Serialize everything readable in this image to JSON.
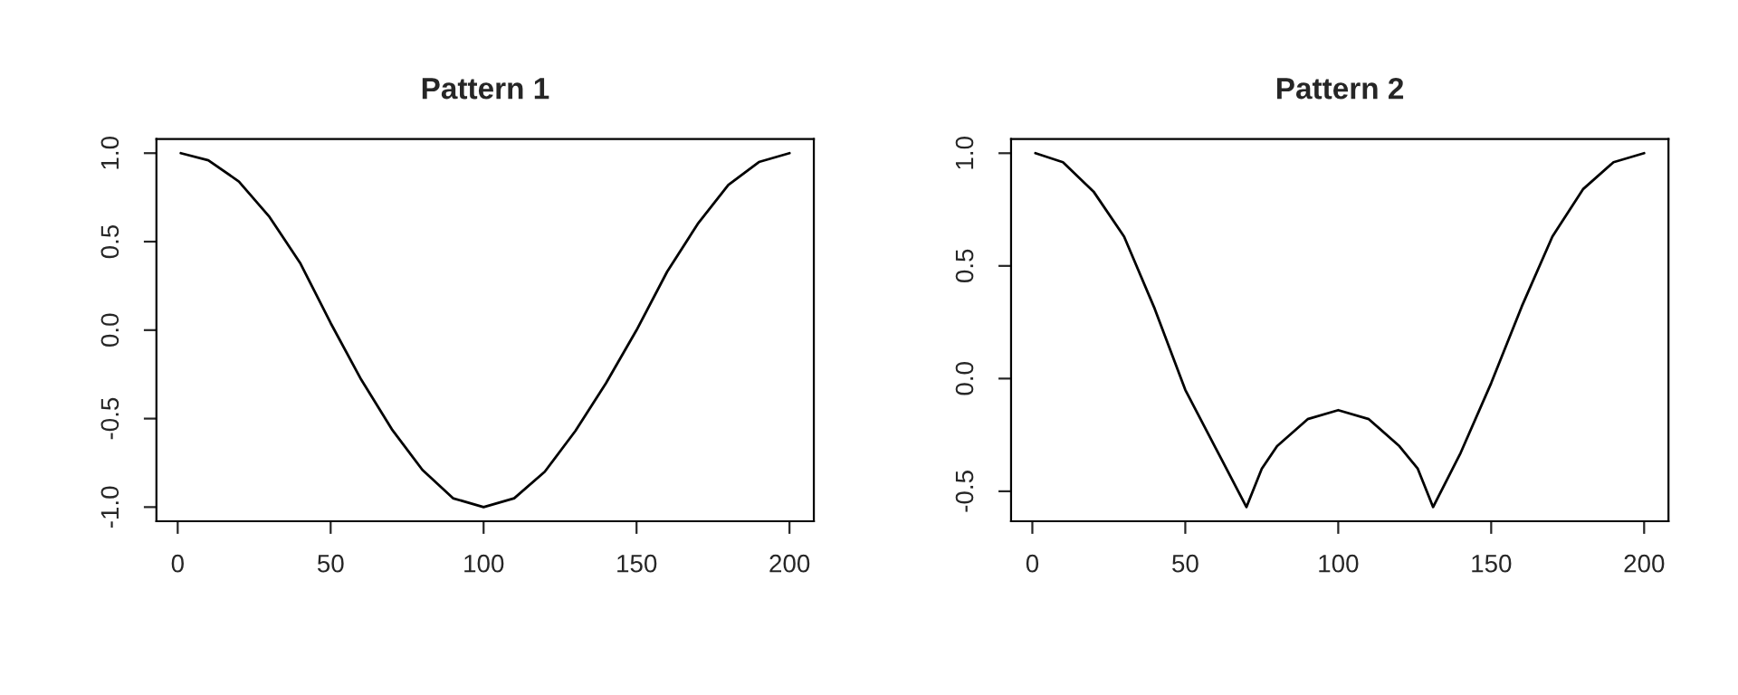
{
  "chart_data": [
    {
      "type": "line",
      "title": "Pattern 1",
      "x": [
        1,
        10,
        20,
        30,
        40,
        50,
        60,
        70,
        80,
        90,
        100,
        110,
        120,
        130,
        140,
        150,
        160,
        170,
        180,
        190,
        200
      ],
      "series": [
        {
          "color": "#000000",
          "values": [
            1,
            0.96,
            0.84,
            0.64,
            0.38,
            0.04,
            -0.28,
            -0.56,
            -0.79,
            -0.95,
            -1,
            -0.95,
            -0.8,
            -0.57,
            -0.3,
            0.0,
            0.33,
            0.6,
            0.82,
            0.95,
            1
          ]
        }
      ],
      "xlim": [
        -6.96,
        207.96
      ],
      "ylim": [
        -1.08,
        1.08
      ],
      "xticks": [
        0,
        50,
        100,
        150,
        200
      ],
      "yticks": [
        {
          "value": -1,
          "label": "-1.0"
        },
        {
          "value": -0.5,
          "label": "-0.5"
        },
        {
          "value": 0,
          "label": "0.0"
        },
        {
          "value": 0.5,
          "label": "0.5"
        },
        {
          "value": 1,
          "label": "1.0"
        }
      ],
      "grid": false,
      "legend": false
    },
    {
      "type": "line",
      "title": "Pattern 2",
      "x": [
        1,
        10,
        20,
        30,
        40,
        50,
        60,
        70,
        75,
        80,
        90,
        100,
        110,
        120,
        126,
        131,
        140,
        150,
        160,
        170,
        180,
        190,
        200
      ],
      "series": [
        {
          "color": "#000000",
          "values": [
            1,
            0.96,
            0.83,
            0.63,
            0.31,
            -0.05,
            -0.31,
            -0.57,
            -0.4,
            -0.3,
            -0.18,
            -0.14,
            -0.18,
            -0.3,
            -0.4,
            -0.57,
            -0.33,
            -0.02,
            0.32,
            0.63,
            0.84,
            0.96,
            1
          ]
        }
      ],
      "xlim": [
        -6.96,
        207.96
      ],
      "ylim": [
        -0.633,
        1.063
      ],
      "xticks": [
        0,
        50,
        100,
        150,
        200
      ],
      "yticks": [
        {
          "value": -0.5,
          "label": "-0.5"
        },
        {
          "value": 0,
          "label": "0.0"
        },
        {
          "value": 0.5,
          "label": "0.5"
        },
        {
          "value": 1,
          "label": "1.0"
        }
      ],
      "grid": false,
      "legend": false
    }
  ]
}
